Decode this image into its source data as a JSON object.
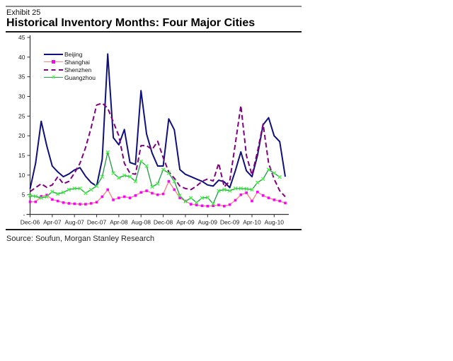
{
  "header": {
    "exhibit_label": "Exhibit 25",
    "title": "Historical Inventory Months: Four Major Cities"
  },
  "footer": {
    "source_text": "Source: Soufun, Morgan Stanley Research"
  },
  "chart_data": {
    "type": "line",
    "title": "Historical Inventory Months: Four Major Cities",
    "xlabel": "",
    "ylabel": "",
    "ylim": [
      0,
      45
    ],
    "grid": false,
    "legend_position": "upper-left-inside",
    "x_monthly_start": "Dec-06",
    "x_monthly_end": "Oct-10",
    "x_tick_labels": [
      "Dec-06",
      "Apr-07",
      "Aug-07",
      "Dec-07",
      "Apr-08",
      "Aug-08",
      "Dec-08",
      "Apr-09",
      "Aug-09",
      "Dec-09",
      "Apr-10",
      "Aug-10"
    ],
    "x_tick_month_indexes": [
      0,
      4,
      8,
      12,
      16,
      20,
      24,
      28,
      32,
      36,
      40,
      44
    ],
    "y_ticks": [
      {
        "label": "45",
        "value": 45
      },
      {
        "label": "40",
        "value": 40
      },
      {
        "label": "35",
        "value": 35
      },
      {
        "label": "30",
        "value": 30
      },
      {
        "label": "25",
        "value": 25
      },
      {
        "label": "20",
        "value": 20
      },
      {
        "label": "15",
        "value": 15
      },
      {
        "label": "10",
        "value": 10
      },
      {
        "label": "5",
        "value": 5
      },
      {
        "label": "-",
        "value": 0
      }
    ],
    "axis_color": "#333333",
    "series": [
      {
        "name": "Beijing",
        "color": "#10107d",
        "style": "solid",
        "marker": "none",
        "line_width": 2,
        "values": [
          6.5,
          13,
          23.7,
          17.5,
          12.3,
          10.8,
          9.6,
          10.3,
          11.3,
          11.9,
          9.7,
          8.1,
          7.2,
          14,
          40.8,
          19.5,
          17.7,
          21.6,
          13.2,
          12.7,
          31.5,
          20.4,
          15.6,
          12.3,
          12.3,
          24.3,
          21.5,
          11.4,
          10.2,
          9.6,
          9.0,
          8.4,
          7.5,
          7.2,
          8.7,
          8.3,
          6.8,
          11.1,
          15.9,
          11.1,
          9.6,
          15.0,
          22.8,
          24.6,
          20.0,
          18.5,
          9.6
        ]
      },
      {
        "name": "Shanghai",
        "color": "#fa8585",
        "marker_color": "#ff00ff",
        "style": "solid",
        "marker": "square",
        "line_width": 1.4,
        "values": [
          3.2,
          3.2,
          4.6,
          4.9,
          3.8,
          3.4,
          3.0,
          2.8,
          2.7,
          2.6,
          2.6,
          2.8,
          3.1,
          4.5,
          6.3,
          3.7,
          4.2,
          4.5,
          4.2,
          4.8,
          5.6,
          6.0,
          5.4,
          5.0,
          5.2,
          8.4,
          6.3,
          4.2,
          3.4,
          2.6,
          2.4,
          2.2,
          2.1,
          2.2,
          2.4,
          2.1,
          2.5,
          3.6,
          5.0,
          5.5,
          3.4,
          5.7,
          4.8,
          4.2,
          3.7,
          3.4,
          2.9
        ]
      },
      {
        "name": "Shenzhen",
        "color": "#800080",
        "style": "dashed",
        "marker": "none",
        "line_width": 2,
        "values": [
          5.8,
          6.8,
          7.8,
          6.9,
          7.5,
          9.6,
          7.8,
          8.4,
          10.5,
          13.0,
          17.0,
          22.0,
          27.8,
          28.3,
          27.0,
          23.5,
          20.0,
          13.0,
          10.5,
          10.2,
          17.5,
          17.5,
          16.5,
          18.6,
          14.4,
          10.8,
          9.2,
          7.2,
          6.6,
          6.3,
          7.2,
          8.4,
          9.0,
          8.5,
          13.0,
          7.0,
          8.5,
          18.0,
          27.7,
          15.0,
          10.0,
          16.0,
          23.0,
          13.0,
          9.0,
          6.0,
          4.5
        ]
      },
      {
        "name": "Guangzhou",
        "color": "#2e9e50",
        "marker_color": "#44ef44",
        "style": "solid",
        "marker": "x",
        "line_width": 1.4,
        "values": [
          4.8,
          4.6,
          4.2,
          4.5,
          5.8,
          5.2,
          5.6,
          6.3,
          6.6,
          6.6,
          5.4,
          6.3,
          7.2,
          9.6,
          15.8,
          10.5,
          9.3,
          9.9,
          9.6,
          8.4,
          13.5,
          12.3,
          7.0,
          7.8,
          11.4,
          10.5,
          8.4,
          4.8,
          3.3,
          4.2,
          3.0,
          4.2,
          4.3,
          2.7,
          6.0,
          6.3,
          6.0,
          6.6,
          6.6,
          6.5,
          6.3,
          8.1,
          9.0,
          11.4,
          10.5,
          9.5,
          null
        ]
      }
    ]
  }
}
